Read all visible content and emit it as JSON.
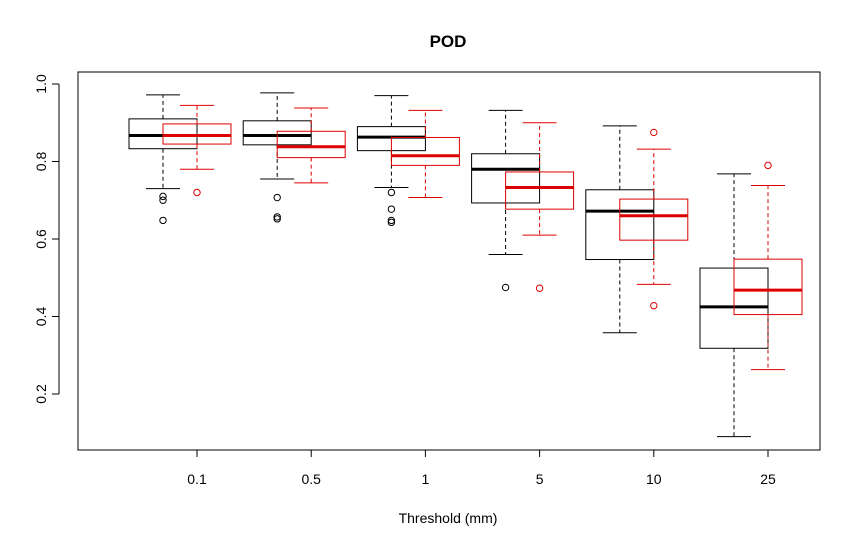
{
  "chart_data": {
    "type": "boxplot",
    "title": "POD",
    "xlabel": "Threshold (mm)",
    "ylabel": "",
    "categories": [
      "0.1",
      "0.5",
      "1",
      "5",
      "10",
      "25"
    ],
    "yticks": [
      "0.2",
      "0.4",
      "0.6",
      "0.8",
      "1.0"
    ],
    "ylim": [
      0.05,
      1.02
    ],
    "grid": false,
    "legend": "none",
    "series": [
      {
        "color": "#000000",
        "boxes": [
          {
            "min": 0.73,
            "q1": 0.833,
            "median": 0.867,
            "q3": 0.91,
            "max": 0.972,
            "outliers": [
              0.71,
              0.7,
              0.648
            ]
          },
          {
            "min": 0.755,
            "q1": 0.843,
            "median": 0.867,
            "q3": 0.905,
            "max": 0.977,
            "outliers": [
              0.707,
              0.657,
              0.652
            ]
          },
          {
            "min": 0.733,
            "q1": 0.828,
            "median": 0.863,
            "q3": 0.89,
            "max": 0.97,
            "outliers": [
              0.72,
              0.677,
              0.648,
              0.643
            ]
          },
          {
            "min": 0.56,
            "q1": 0.693,
            "median": 0.78,
            "q3": 0.82,
            "max": 0.932,
            "outliers": [
              0.475
            ]
          },
          {
            "min": 0.358,
            "q1": 0.547,
            "median": 0.672,
            "q3": 0.727,
            "max": 0.892,
            "outliers": []
          },
          {
            "min": 0.09,
            "q1": 0.318,
            "median": 0.425,
            "q3": 0.525,
            "max": 0.768,
            "outliers": []
          }
        ]
      },
      {
        "color": "#dd0000",
        "boxes": [
          {
            "min": 0.78,
            "q1": 0.845,
            "median": 0.867,
            "q3": 0.897,
            "max": 0.945,
            "outliers": [
              0.72
            ]
          },
          {
            "min": 0.745,
            "q1": 0.81,
            "median": 0.838,
            "q3": 0.878,
            "max": 0.938,
            "outliers": []
          },
          {
            "min": 0.707,
            "q1": 0.79,
            "median": 0.815,
            "q3": 0.862,
            "max": 0.932,
            "outliers": []
          },
          {
            "min": 0.61,
            "q1": 0.677,
            "median": 0.733,
            "q3": 0.773,
            "max": 0.9,
            "outliers": [
              0.473
            ]
          },
          {
            "min": 0.483,
            "q1": 0.597,
            "median": 0.66,
            "q3": 0.703,
            "max": 0.832,
            "outliers": [
              0.875,
              0.428
            ]
          },
          {
            "min": 0.263,
            "q1": 0.405,
            "median": 0.468,
            "q3": 0.548,
            "max": 0.738,
            "outliers": [
              0.79
            ]
          }
        ]
      }
    ]
  }
}
